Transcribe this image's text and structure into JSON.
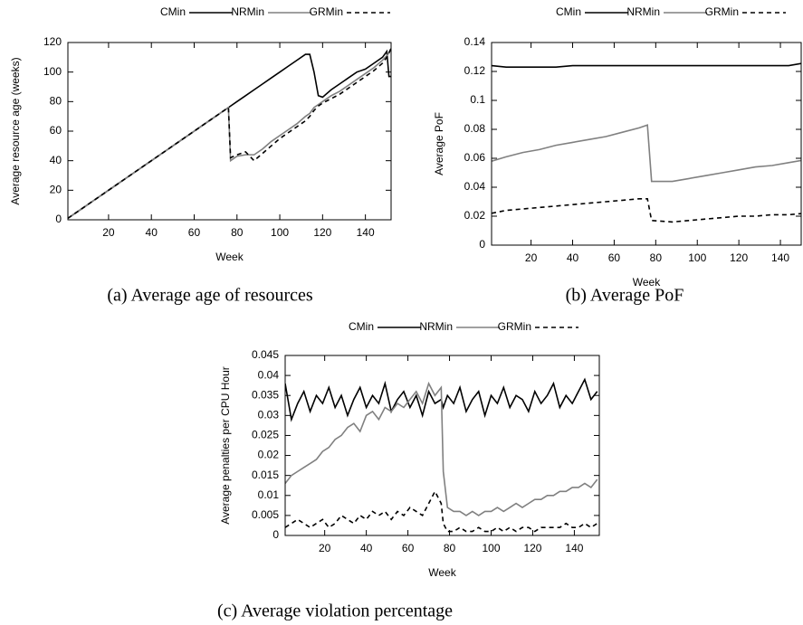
{
  "chart_data": [
    {
      "type": "line",
      "caption": "(a) Average age of resources",
      "xlabel": "Week",
      "ylabel": "Average resource age (weeks)",
      "xlim": [
        1,
        152
      ],
      "xticks": [
        20,
        40,
        60,
        80,
        100,
        120,
        140
      ],
      "ylim": [
        0,
        120
      ],
      "yticks": [
        0,
        20,
        40,
        60,
        80,
        100,
        120
      ],
      "x": [
        1,
        4,
        8,
        12,
        16,
        20,
        24,
        28,
        32,
        36,
        40,
        44,
        48,
        52,
        56,
        60,
        64,
        68,
        72,
        76,
        77,
        80,
        84,
        88,
        92,
        96,
        100,
        104,
        108,
        112,
        114,
        116,
        118,
        120,
        124,
        128,
        132,
        136,
        140,
        144,
        148,
        150,
        151,
        152
      ],
      "series": [
        {
          "name": "CMin",
          "color": "#000000",
          "linestyle": "solid",
          "values": [
            1,
            4,
            8,
            12,
            16,
            20,
            24,
            28,
            32,
            36,
            40,
            44,
            48,
            52,
            56,
            60,
            64,
            68,
            72,
            76,
            77,
            80,
            84,
            88,
            92,
            96,
            100,
            104,
            108,
            112,
            112,
            100,
            84,
            83,
            88,
            92,
            96,
            100,
            102,
            106,
            110,
            114,
            97,
            97
          ]
        },
        {
          "name": "NRMin",
          "color": "#808080",
          "linestyle": "solid",
          "values": [
            1,
            4,
            8,
            12,
            16,
            20,
            24,
            28,
            32,
            36,
            40,
            44,
            48,
            52,
            56,
            60,
            64,
            68,
            72,
            76,
            40,
            43,
            44,
            44,
            48,
            53,
            57,
            61,
            65,
            70,
            72,
            76,
            78,
            80,
            84,
            87,
            91,
            95,
            99,
            103,
            108,
            111,
            113,
            116
          ]
        },
        {
          "name": "GRMin",
          "color": "#000000",
          "linestyle": "dashed",
          "values": [
            1,
            4,
            8,
            12,
            16,
            20,
            24,
            28,
            32,
            36,
            40,
            44,
            48,
            52,
            56,
            60,
            64,
            68,
            72,
            76,
            42,
            44,
            46,
            40,
            45,
            50,
            55,
            59,
            63,
            67,
            70,
            74,
            77,
            79,
            82,
            85,
            89,
            93,
            97,
            101,
            106,
            110,
            113,
            116
          ]
        }
      ]
    },
    {
      "type": "line",
      "caption": "(b) Average PoF",
      "xlabel": "Week",
      "ylabel": "Average PoF",
      "xlim": [
        1,
        150
      ],
      "xticks": [
        20,
        40,
        60,
        80,
        100,
        120,
        140
      ],
      "ylim": [
        0,
        0.14
      ],
      "yticks": [
        0,
        0.02,
        0.04,
        0.06,
        0.08,
        0.1,
        0.12,
        0.14
      ],
      "x": [
        1,
        8,
        16,
        24,
        32,
        40,
        48,
        56,
        64,
        72,
        76,
        78,
        88,
        96,
        104,
        112,
        120,
        128,
        136,
        144,
        152
      ],
      "series": [
        {
          "name": "CMin",
          "color": "#000000",
          "linestyle": "solid",
          "values": [
            0.124,
            0.123,
            0.123,
            0.123,
            0.123,
            0.124,
            0.124,
            0.124,
            0.124,
            0.124,
            0.124,
            0.124,
            0.124,
            0.124,
            0.124,
            0.124,
            0.124,
            0.124,
            0.124,
            0.124,
            0.126
          ]
        },
        {
          "name": "NRMin",
          "color": "#808080",
          "linestyle": "solid",
          "values": [
            0.058,
            0.061,
            0.064,
            0.066,
            0.069,
            0.071,
            0.073,
            0.075,
            0.078,
            0.081,
            0.083,
            0.044,
            0.044,
            0.046,
            0.048,
            0.05,
            0.052,
            0.054,
            0.055,
            0.057,
            0.059
          ]
        },
        {
          "name": "GRMin",
          "color": "#000000",
          "linestyle": "dashed",
          "values": [
            0.022,
            0.024,
            0.025,
            0.026,
            0.027,
            0.028,
            0.029,
            0.03,
            0.031,
            0.032,
            0.032,
            0.017,
            0.016,
            0.017,
            0.018,
            0.019,
            0.02,
            0.02,
            0.021,
            0.021,
            0.022
          ]
        }
      ]
    },
    {
      "type": "line",
      "caption": "(c) Average violation percentage",
      "xlabel": "Week",
      "ylabel": "Average penalties per CPU Hour",
      "xlim": [
        1,
        152
      ],
      "xticks": [
        20,
        40,
        60,
        80,
        100,
        120,
        140
      ],
      "ylim": [
        0,
        0.045
      ],
      "yticks": [
        0,
        0.005,
        0.01,
        0.015,
        0.02,
        0.025,
        0.03,
        0.035,
        0.04,
        0.045
      ],
      "x": [
        1,
        4,
        7,
        10,
        13,
        16,
        19,
        22,
        25,
        28,
        31,
        34,
        37,
        40,
        43,
        46,
        49,
        52,
        55,
        58,
        61,
        64,
        67,
        70,
        73,
        76,
        77,
        79,
        82,
        85,
        88,
        91,
        94,
        97,
        100,
        103,
        106,
        109,
        112,
        115,
        118,
        121,
        124,
        127,
        130,
        133,
        136,
        139,
        142,
        145,
        148,
        151
      ],
      "series": [
        {
          "name": "CMin",
          "color": "#000000",
          "linestyle": "solid",
          "values": [
            0.038,
            0.029,
            0.033,
            0.036,
            0.031,
            0.035,
            0.033,
            0.037,
            0.032,
            0.035,
            0.03,
            0.034,
            0.037,
            0.032,
            0.035,
            0.033,
            0.038,
            0.031,
            0.034,
            0.036,
            0.032,
            0.035,
            0.03,
            0.036,
            0.033,
            0.034,
            0.032,
            0.035,
            0.033,
            0.037,
            0.031,
            0.034,
            0.036,
            0.03,
            0.035,
            0.033,
            0.037,
            0.032,
            0.035,
            0.034,
            0.031,
            0.036,
            0.033,
            0.035,
            0.038,
            0.032,
            0.035,
            0.033,
            0.036,
            0.039,
            0.034,
            0.036
          ]
        },
        {
          "name": "NRMin",
          "color": "#808080",
          "linestyle": "solid",
          "values": [
            0.013,
            0.015,
            0.016,
            0.017,
            0.018,
            0.019,
            0.021,
            0.022,
            0.024,
            0.025,
            0.027,
            0.028,
            0.026,
            0.03,
            0.031,
            0.029,
            0.032,
            0.031,
            0.033,
            0.032,
            0.034,
            0.036,
            0.033,
            0.038,
            0.035,
            0.037,
            0.016,
            0.007,
            0.006,
            0.006,
            0.005,
            0.006,
            0.005,
            0.006,
            0.006,
            0.007,
            0.006,
            0.007,
            0.008,
            0.007,
            0.008,
            0.009,
            0.009,
            0.01,
            0.01,
            0.011,
            0.011,
            0.012,
            0.012,
            0.013,
            0.012,
            0.014
          ]
        },
        {
          "name": "GRMin",
          "color": "#000000",
          "linestyle": "dashed",
          "values": [
            0.002,
            0.003,
            0.004,
            0.003,
            0.002,
            0.003,
            0.004,
            0.002,
            0.003,
            0.005,
            0.004,
            0.003,
            0.005,
            0.004,
            0.006,
            0.005,
            0.006,
            0.004,
            0.006,
            0.005,
            0.007,
            0.006,
            0.005,
            0.008,
            0.011,
            0.008,
            0.003,
            0.001,
            0.001,
            0.002,
            0.001,
            0.001,
            0.002,
            0.001,
            0.001,
            0.002,
            0.001,
            0.002,
            0.001,
            0.002,
            0.002,
            0.001,
            0.002,
            0.002,
            0.002,
            0.002,
            0.003,
            0.002,
            0.002,
            0.003,
            0.002,
            0.003
          ]
        }
      ]
    }
  ]
}
